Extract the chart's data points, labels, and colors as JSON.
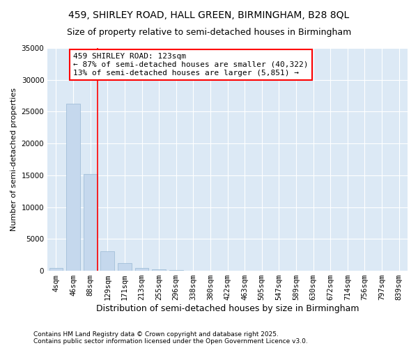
{
  "title1": "459, SHIRLEY ROAD, HALL GREEN, BIRMINGHAM, B28 8QL",
  "title2": "Size of property relative to semi-detached houses in Birmingham",
  "xlabel": "Distribution of semi-detached houses by size in Birmingham",
  "ylabel": "Number of semi-detached properties",
  "categories": [
    "4sqm",
    "46sqm",
    "88sqm",
    "129sqm",
    "171sqm",
    "213sqm",
    "255sqm",
    "296sqm",
    "338sqm",
    "380sqm",
    "422sqm",
    "463sqm",
    "505sqm",
    "547sqm",
    "589sqm",
    "630sqm",
    "672sqm",
    "714sqm",
    "756sqm",
    "797sqm",
    "839sqm"
  ],
  "values": [
    450,
    26200,
    15200,
    3100,
    1200,
    450,
    250,
    100,
    0,
    0,
    0,
    0,
    0,
    0,
    0,
    0,
    0,
    0,
    0,
    0,
    0
  ],
  "bar_color": "#c5d8ed",
  "bar_edge_color": "#99b8d4",
  "vline_x_index": 2.42,
  "vline_color": "red",
  "annotation_text": "459 SHIRLEY ROAD: 123sqm\n← 87% of semi-detached houses are smaller (40,322)\n13% of semi-detached houses are larger (5,851) →",
  "annotation_box_color": "white",
  "annotation_box_edge_color": "red",
  "ylim": [
    0,
    35000
  ],
  "yticks": [
    0,
    5000,
    10000,
    15000,
    20000,
    25000,
    30000,
    35000
  ],
  "plot_bg_color": "#dce9f5",
  "fig_bg_color": "#ffffff",
  "grid_color": "white",
  "footer_text": "Contains HM Land Registry data © Crown copyright and database right 2025.\nContains public sector information licensed under the Open Government Licence v3.0.",
  "title1_fontsize": 10,
  "title2_fontsize": 9,
  "xlabel_fontsize": 9,
  "ylabel_fontsize": 8,
  "tick_fontsize": 7.5,
  "annotation_fontsize": 8,
  "footer_fontsize": 6.5
}
